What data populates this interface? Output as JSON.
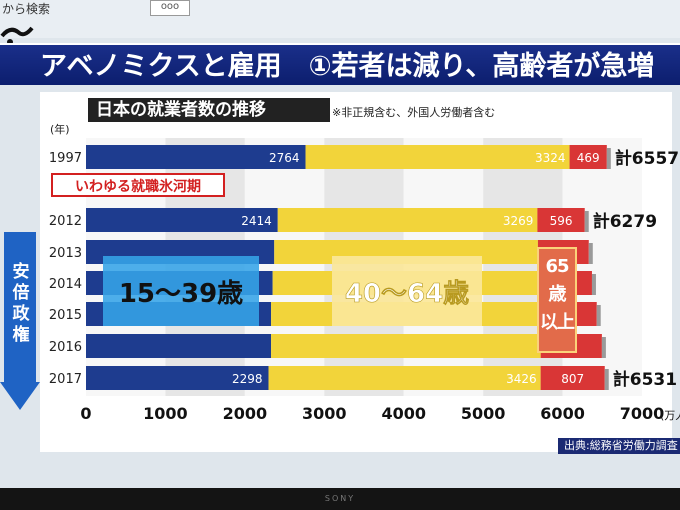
{
  "top": {
    "search_text": "から検索",
    "box_text": "ooo"
  },
  "banner": {
    "title": "アベノミクスと雇用　①若者は減り、高齢者が急増"
  },
  "note": "※非正規含む、外国人労働者含む",
  "side_label": "安倍政権",
  "source": "出典:総務省労働力調査",
  "tv_brand": "SONY",
  "colors": {
    "young": "#1e3c8f",
    "middle": "#f2d43a",
    "old": "#d93636",
    "banner": "#13277e"
  },
  "chart_data": {
    "type": "bar",
    "orientation": "horizontal",
    "stacked": true,
    "title": "日本の就業者数の推移",
    "year_axis_label": "(年)",
    "xlabel": "(万人)",
    "xlim": [
      0,
      7000
    ],
    "x_ticks": [
      "0",
      "1000",
      "2000",
      "3000",
      "4000",
      "5000",
      "6000",
      "7000"
    ],
    "categories": [
      "1997",
      "2012",
      "2013",
      "2014",
      "2015",
      "2016",
      "2017"
    ],
    "series": [
      {
        "name": "15〜39歳",
        "values": [
          2764,
          2414,
          2370,
          2350,
          2330,
          2330,
          2298
        ]
      },
      {
        "name": "40〜64歳",
        "values": [
          3324,
          3269,
          3320,
          3340,
          3370,
          3395,
          3426
        ]
      },
      {
        "name": "65歳以上",
        "values": [
          469,
          596,
          640,
          680,
          730,
          770,
          807
        ]
      }
    ],
    "data_labels": {
      "1997": [
        "2764",
        "3324",
        "469"
      ],
      "2012": [
        "2414",
        "3269",
        "596"
      ],
      "2017": [
        "2298",
        "3426",
        "807"
      ]
    },
    "totals": {
      "1997": "計6557",
      "2012": "計6279",
      "2017": "計6531"
    },
    "annotations": {
      "hyogaki": "いわゆる就職氷河期",
      "young": "15〜39歳",
      "middle": "40〜64歳",
      "old": "65歳以上"
    }
  }
}
